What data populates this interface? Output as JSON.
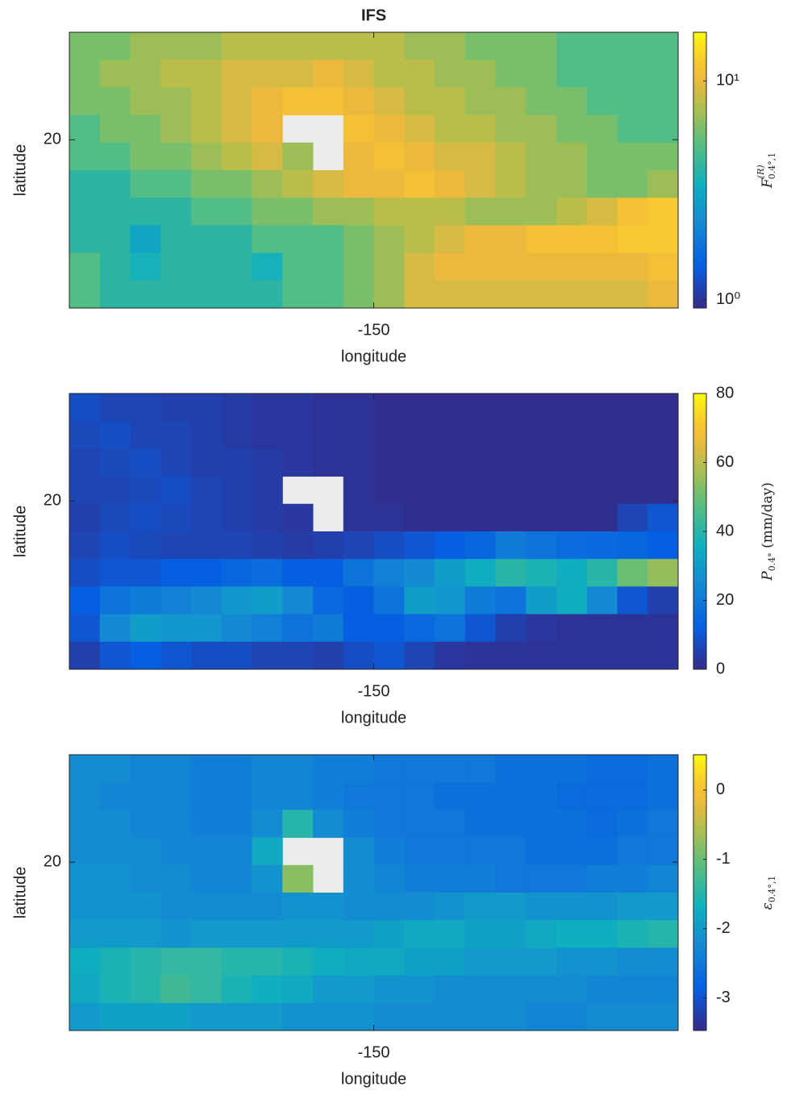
{
  "chart_data": [
    {
      "type": "heatmap",
      "title": "IFS",
      "xlabel": "longitude",
      "ylabel": "latitude",
      "colorbar_label": {
        "main": "F",
        "sub": "0.4°,1",
        "sup": "(R)"
      },
      "xlim": [
        -165,
        -135
      ],
      "ylim": [
        11.7,
        25.3
      ],
      "xticks": [
        -150
      ],
      "yticks": [
        20
      ],
      "colormap": "parula",
      "clog": true,
      "clim": [
        0.918,
        16.7
      ],
      "cticks": [
        {
          "value": 1,
          "label": "10⁰"
        },
        {
          "value": 10,
          "label": "10¹"
        }
      ],
      "z": [
        [
          6,
          6,
          7,
          7,
          7,
          8,
          8,
          8,
          8,
          8,
          8,
          7,
          7,
          6,
          6,
          6,
          5,
          5,
          5,
          5
        ],
        [
          6,
          7,
          7,
          8,
          8,
          9,
          9,
          9,
          10,
          9,
          8,
          8,
          7,
          7,
          6,
          6,
          5,
          5,
          5,
          5
        ],
        [
          6,
          6,
          7,
          7,
          8,
          9,
          10,
          11,
          11,
          10,
          9,
          8,
          8,
          7,
          7,
          6,
          6,
          5,
          5,
          5
        ],
        [
          5,
          6,
          6,
          7,
          8,
          9,
          10,
          null,
          null,
          11,
          10,
          9,
          8,
          8,
          7,
          7,
          6,
          6,
          5,
          5
        ],
        [
          5,
          5,
          6,
          6,
          7,
          8,
          9,
          7,
          null,
          10,
          11,
          10,
          9,
          9,
          8,
          7,
          7,
          6,
          6,
          6
        ],
        [
          4,
          4,
          5,
          5,
          6,
          6,
          7,
          8,
          9,
          10,
          10,
          11,
          10,
          9,
          8,
          7,
          7,
          6,
          6,
          7
        ],
        [
          4,
          4,
          4,
          4,
          5,
          5,
          6,
          6,
          7,
          7,
          8,
          8,
          8,
          7,
          7,
          7,
          8,
          9,
          11,
          12
        ],
        [
          4,
          4,
          3,
          4,
          4,
          4,
          5,
          5,
          5,
          6,
          7,
          8,
          9,
          10,
          10,
          11,
          11,
          11,
          12,
          12
        ],
        [
          5,
          4,
          3.5,
          4,
          4,
          4,
          3.5,
          5,
          5,
          6,
          7,
          9,
          10,
          10,
          10,
          10,
          10,
          10,
          10,
          11
        ],
        [
          5,
          4,
          4,
          4,
          4,
          4,
          4,
          5,
          5,
          6,
          7,
          9,
          9,
          9,
          9,
          9,
          9,
          9,
          9,
          10
        ]
      ]
    },
    {
      "type": "heatmap",
      "xlabel": "longitude",
      "ylabel": "latitude",
      "colorbar_label": {
        "main": "P",
        "sub": "0.4°",
        "rest": " (mm/day)"
      },
      "xlim": [
        -165,
        -135
      ],
      "ylim": [
        11.7,
        25.3
      ],
      "xticks": [
        -150
      ],
      "yticks": [
        20
      ],
      "colormap": "parula",
      "clog": false,
      "clim": [
        0,
        80
      ],
      "cticks": [
        0,
        20,
        40,
        60,
        80
      ],
      "z": [
        [
          8,
          6,
          6,
          5,
          5,
          4,
          3,
          3,
          2,
          2,
          1,
          1,
          1,
          1,
          1,
          1,
          1,
          1,
          1,
          1
        ],
        [
          7,
          8,
          6,
          6,
          5,
          4,
          3,
          3,
          2,
          2,
          1,
          1,
          1,
          1,
          1,
          1,
          1,
          1,
          1,
          1
        ],
        [
          6,
          7,
          8,
          6,
          5,
          5,
          4,
          3,
          2,
          2,
          1,
          1,
          1,
          1,
          1,
          1,
          1,
          1,
          1,
          1
        ],
        [
          6,
          6,
          7,
          8,
          6,
          5,
          4,
          null,
          null,
          2,
          1,
          1,
          1,
          1,
          1,
          1,
          1,
          1,
          1,
          1
        ],
        [
          5,
          7,
          8,
          7,
          6,
          5,
          4,
          3,
          null,
          2,
          2,
          1,
          1,
          1,
          1,
          1,
          1,
          1,
          6,
          10
        ],
        [
          6,
          8,
          7,
          6,
          6,
          6,
          5,
          4,
          5,
          6,
          8,
          10,
          12,
          14,
          20,
          18,
          16,
          15,
          14,
          12
        ],
        [
          8,
          10,
          10,
          12,
          12,
          14,
          16,
          12,
          12,
          18,
          22,
          25,
          30,
          35,
          40,
          38,
          35,
          40,
          50,
          55
        ],
        [
          12,
          18,
          20,
          22,
          25,
          28,
          30,
          25,
          15,
          12,
          18,
          30,
          28,
          20,
          18,
          30,
          35,
          25,
          10,
          5
        ],
        [
          10,
          25,
          30,
          28,
          28,
          25,
          22,
          18,
          20,
          12,
          12,
          15,
          18,
          10,
          5,
          3,
          2,
          2,
          2,
          2
        ],
        [
          5,
          10,
          12,
          10,
          8,
          8,
          6,
          6,
          5,
          8,
          10,
          6,
          3,
          2,
          2,
          2,
          2,
          2,
          2,
          2
        ]
      ]
    },
    {
      "type": "heatmap",
      "xlabel": "longitude",
      "ylabel": "latitude",
      "colorbar_label": {
        "main": "ε",
        "sub": "0.4°,1"
      },
      "xlim": [
        -165,
        -135
      ],
      "ylim": [
        11.7,
        25.3
      ],
      "xticks": [
        -150
      ],
      "yticks": [
        20
      ],
      "colormap": "parula",
      "clog": false,
      "clim": [
        -3.47,
        0.51
      ],
      "cticks": [
        -3,
        -2,
        -1,
        0
      ],
      "z": [
        [
          -2.2,
          -2.2,
          -2.3,
          -2.3,
          -2.4,
          -2.4,
          -2.3,
          -2.3,
          -2.4,
          -2.4,
          -2.5,
          -2.5,
          -2.5,
          -2.5,
          -2.6,
          -2.6,
          -2.6,
          -2.7,
          -2.7,
          -2.6
        ],
        [
          -2.2,
          -2.3,
          -2.3,
          -2.3,
          -2.4,
          -2.4,
          -2.3,
          -2.3,
          -2.4,
          -2.5,
          -2.5,
          -2.5,
          -2.6,
          -2.6,
          -2.6,
          -2.6,
          -2.7,
          -2.7,
          -2.7,
          -2.6
        ],
        [
          -2.2,
          -2.2,
          -2.3,
          -2.3,
          -2.4,
          -2.4,
          -2.2,
          -1.5,
          -2.2,
          -2.4,
          -2.5,
          -2.5,
          -2.5,
          -2.6,
          -2.6,
          -2.6,
          -2.6,
          -2.7,
          -2.6,
          -2.5
        ],
        [
          -2.2,
          -2.2,
          -2.2,
          -2.3,
          -2.3,
          -2.3,
          -1.8,
          null,
          null,
          -2.2,
          -2.4,
          -2.5,
          -2.5,
          -2.5,
          -2.5,
          -2.6,
          -2.6,
          -2.6,
          -2.5,
          -2.5
        ],
        [
          -2.1,
          -2.1,
          -2.2,
          -2.2,
          -2.3,
          -2.3,
          -2.1,
          -0.8,
          null,
          -2.2,
          -2.3,
          -2.4,
          -2.4,
          -2.4,
          -2.5,
          -2.5,
          -2.5,
          -2.4,
          -2.4,
          -2.3
        ],
        [
          -2.1,
          -2.1,
          -2.1,
          -2.2,
          -2.2,
          -2.2,
          -2.2,
          -2.1,
          -2.1,
          -2.2,
          -2.2,
          -2.2,
          -2.1,
          -2.0,
          -2.0,
          -2.1,
          -2.1,
          -2.1,
          -2.0,
          -2.0
        ],
        [
          -2.0,
          -2.0,
          -2.0,
          -2.1,
          -2.0,
          -2.0,
          -2.0,
          -2.0,
          -2.0,
          -2.0,
          -1.9,
          -1.8,
          -1.8,
          -1.9,
          -1.9,
          -1.8,
          -1.7,
          -1.7,
          -1.6,
          -1.5
        ],
        [
          -1.7,
          -1.6,
          -1.5,
          -1.4,
          -1.4,
          -1.5,
          -1.5,
          -1.6,
          -1.7,
          -1.8,
          -1.8,
          -1.9,
          -1.9,
          -2.0,
          -2.0,
          -2.0,
          -2.1,
          -2.1,
          -2.2,
          -2.2
        ],
        [
          -1.8,
          -1.6,
          -1.5,
          -1.3,
          -1.4,
          -1.6,
          -1.7,
          -1.8,
          -2.0,
          -2.0,
          -2.1,
          -2.1,
          -2.2,
          -2.2,
          -2.2,
          -2.2,
          -2.2,
          -2.3,
          -2.3,
          -2.3
        ],
        [
          -2.0,
          -1.9,
          -1.9,
          -1.9,
          -2.0,
          -2.0,
          -2.0,
          -2.1,
          -2.1,
          -2.1,
          -2.2,
          -2.2,
          -2.2,
          -2.2,
          -2.2,
          -2.3,
          -2.3,
          -2.2,
          -2.2,
          -2.2
        ]
      ]
    }
  ]
}
